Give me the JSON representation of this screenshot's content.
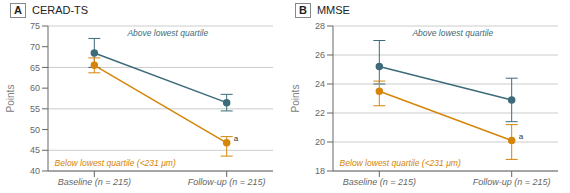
{
  "chart_data": [
    {
      "type": "line",
      "panel_label": "A",
      "title": "CERAD-TS",
      "ylabel": "Points",
      "categories": [
        "Baseline (n = 215)",
        "Follow-up (n = 215)"
      ],
      "ylim": [
        40,
        75
      ],
      "yticks": [
        40,
        45,
        50,
        55,
        60,
        65,
        70,
        75
      ],
      "grid": true,
      "series": [
        {
          "name": "Above lowest quartile",
          "color": "#3d6b7a",
          "marker": "circle",
          "values": [
            68.5,
            56.5
          ],
          "err_down": [
            3.5,
            2.0
          ],
          "err_up": [
            3.5,
            2.0
          ]
        },
        {
          "name": "Below lowest quartile (<231 μm)",
          "color": "#d4850a",
          "marker": "circle",
          "values": [
            65.5,
            46.8
          ],
          "err_down": [
            1.8,
            3.2
          ],
          "err_up": [
            1.8,
            1.5
          ]
        }
      ],
      "annotations": [
        {
          "text": "a",
          "series": "Below lowest quartile (<231 μm)",
          "category": "Follow-up (n = 215)"
        }
      ]
    },
    {
      "type": "line",
      "panel_label": "B",
      "title": "MMSE",
      "ylabel": "Points",
      "categories": [
        "Baseline (n = 215)",
        "Follow-up (n = 215)"
      ],
      "ylim": [
        18,
        28
      ],
      "yticks": [
        18,
        20,
        22,
        24,
        26,
        28
      ],
      "grid": true,
      "series": [
        {
          "name": "Above lowest quartile",
          "color": "#3d6b7a",
          "marker": "circle",
          "values": [
            25.2,
            22.9
          ],
          "err_down": [
            1.2,
            1.5
          ],
          "err_up": [
            1.8,
            1.5
          ]
        },
        {
          "name": "Below lowest quartile (<231 μm)",
          "color": "#d4850a",
          "marker": "circle",
          "values": [
            23.5,
            20.1
          ],
          "err_down": [
            1.0,
            1.3
          ],
          "err_up": [
            0.7,
            1.1
          ]
        }
      ],
      "annotations": [
        {
          "text": "a",
          "series": "Below lowest quartile (<231 μm)",
          "category": "Follow-up (n = 215)"
        }
      ]
    }
  ]
}
